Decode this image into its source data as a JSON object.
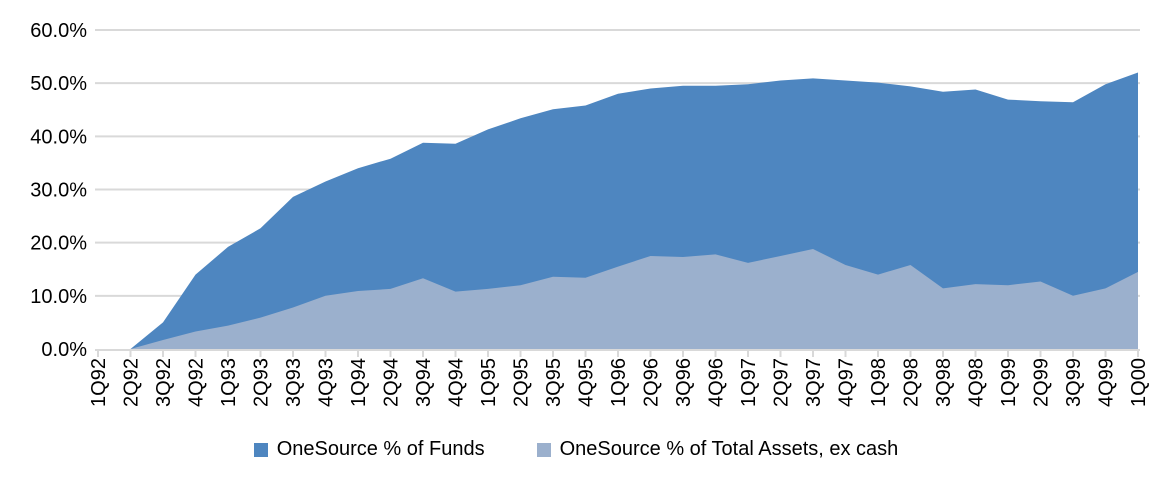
{
  "chart_data": {
    "type": "area",
    "mode": "overlapping",
    "title": "",
    "xlabel": "",
    "ylabel": "",
    "background_color": "#ffffff",
    "axis_color": "#d9d9d9",
    "text_color": "#000000",
    "grid": true,
    "legend_position": "bottom-center",
    "ylim": [
      0,
      60
    ],
    "y_tick_labels": [
      "0.0%",
      "10.0%",
      "20.0%",
      "30.0%",
      "40.0%",
      "50.0%",
      "60.0%"
    ],
    "categories": [
      "1Q92",
      "2Q92",
      "3Q92",
      "4Q92",
      "1Q93",
      "2Q93",
      "3Q93",
      "4Q93",
      "1Q94",
      "2Q94",
      "3Q94",
      "4Q94",
      "1Q95",
      "2Q95",
      "3Q95",
      "4Q95",
      "1Q96",
      "2Q96",
      "3Q96",
      "4Q96",
      "1Q97",
      "2Q97",
      "3Q97",
      "4Q97",
      "1Q98",
      "2Q98",
      "3Q98",
      "4Q98",
      "1Q99",
      "2Q99",
      "3Q99",
      "4Q99",
      "1Q00"
    ],
    "series": [
      {
        "name": "OneSource % of Funds",
        "color": "#4e86c0",
        "values": [
          0,
          0,
          5.0,
          14.0,
          19.2,
          22.7,
          28.6,
          31.5,
          34.0,
          35.8,
          38.8,
          38.6,
          41.3,
          43.4,
          45.1,
          45.8,
          48.0,
          49.0,
          49.5,
          49.5,
          49.8,
          50.5,
          50.9,
          50.5,
          50.1,
          49.4,
          48.4,
          48.8,
          46.9,
          46.6,
          46.4,
          49.8,
          52.0
        ]
      },
      {
        "name": "OneSource % of Total Assets, ex cash",
        "color": "#9bb0cd",
        "values": [
          0,
          0,
          1.7,
          3.3,
          4.4,
          5.9,
          7.8,
          10.0,
          10.9,
          11.3,
          13.3,
          10.8,
          11.3,
          12.0,
          13.6,
          13.4,
          15.5,
          17.5,
          17.3,
          17.8,
          16.2,
          17.5,
          18.8,
          15.8,
          14.0,
          15.8,
          11.4,
          12.2,
          12.0,
          12.7,
          10.0,
          11.4,
          14.5
        ]
      }
    ]
  }
}
